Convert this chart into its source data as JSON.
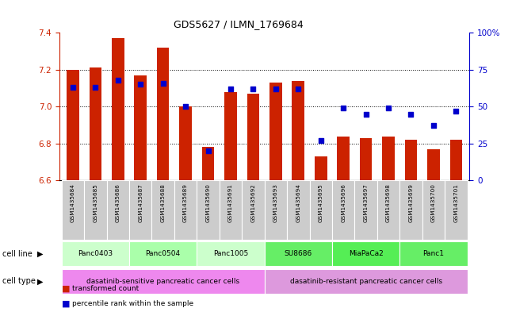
{
  "title": "GDS5627 / ILMN_1769684",
  "samples": [
    "GSM1435684",
    "GSM1435685",
    "GSM1435686",
    "GSM1435687",
    "GSM1435688",
    "GSM1435689",
    "GSM1435690",
    "GSM1435691",
    "GSM1435692",
    "GSM1435693",
    "GSM1435694",
    "GSM1435695",
    "GSM1435696",
    "GSM1435697",
    "GSM1435698",
    "GSM1435699",
    "GSM1435700",
    "GSM1435701"
  ],
  "bar_values": [
    7.2,
    7.21,
    7.37,
    7.17,
    7.32,
    7.0,
    6.78,
    7.08,
    7.07,
    7.13,
    7.14,
    6.73,
    6.84,
    6.83,
    6.84,
    6.82,
    6.77,
    6.82
  ],
  "percentile_values": [
    63,
    63,
    68,
    65,
    66,
    50,
    20,
    62,
    62,
    62,
    62,
    27,
    49,
    45,
    49,
    45,
    37,
    47
  ],
  "ylim_left": [
    6.6,
    7.4
  ],
  "ylim_right": [
    0,
    100
  ],
  "yticks_left": [
    6.6,
    6.8,
    7.0,
    7.2,
    7.4
  ],
  "yticks_right": [
    0,
    25,
    50,
    75,
    100
  ],
  "ytick_labels_right": [
    "0",
    "25",
    "50",
    "75",
    "100%"
  ],
  "bar_color": "#cc2200",
  "dot_color": "#0000cc",
  "cell_lines": [
    {
      "label": "Panc0403",
      "start": 0,
      "end": 3,
      "color": "#ccffcc"
    },
    {
      "label": "Panc0504",
      "start": 3,
      "end": 6,
      "color": "#aaffaa"
    },
    {
      "label": "Panc1005",
      "start": 6,
      "end": 9,
      "color": "#ccffcc"
    },
    {
      "label": "SU8686",
      "start": 9,
      "end": 12,
      "color": "#66ee66"
    },
    {
      "label": "MiaPaCa2",
      "start": 12,
      "end": 15,
      "color": "#55ee55"
    },
    {
      "label": "Panc1",
      "start": 15,
      "end": 18,
      "color": "#66ee66"
    }
  ],
  "cell_types": [
    {
      "label": "dasatinib-sensitive pancreatic cancer cells",
      "start": 0,
      "end": 9,
      "color": "#ee88ee"
    },
    {
      "label": "dasatinib-resistant pancreatic cancer cells",
      "start": 9,
      "end": 18,
      "color": "#dd99dd"
    }
  ],
  "legend_bar_label": "transformed count",
  "legend_dot_label": "percentile rank within the sample",
  "cell_line_label": "cell line",
  "cell_type_label": "cell type",
  "axis_color_left": "#cc2200",
  "axis_color_right": "#0000cc",
  "bar_width": 0.55,
  "dot_size": 18,
  "sample_box_color": "#cccccc"
}
